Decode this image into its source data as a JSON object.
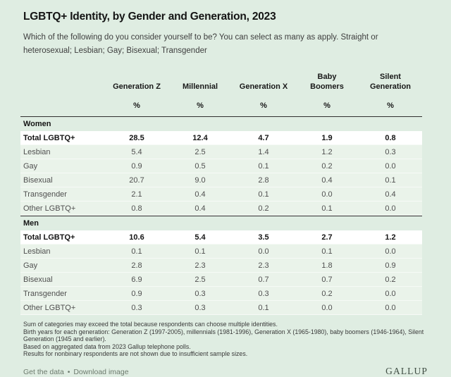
{
  "header": {
    "title": "LGBTQ+ Identity, by Gender and Generation, 2023",
    "question": "Which of the following do you consider yourself to be? You can select as many as apply. Straight or heterosexual; Lesbian; Gay; Bisexual; Transgender"
  },
  "table": {
    "column_headers": [
      "Generation Z",
      "Millennial",
      "Generation X",
      "Baby Boomers",
      "Silent Generation"
    ],
    "unit": "%",
    "sections": [
      {
        "label": "Women",
        "rows": [
          {
            "label": "Total LGBTQ+",
            "emphasis": true,
            "values": [
              "28.5",
              "12.4",
              "4.7",
              "1.9",
              "0.8"
            ]
          },
          {
            "label": "Lesbian",
            "values": [
              "5.4",
              "2.5",
              "1.4",
              "1.2",
              "0.3"
            ]
          },
          {
            "label": "Gay",
            "values": [
              "0.9",
              "0.5",
              "0.1",
              "0.2",
              "0.0"
            ]
          },
          {
            "label": "Bisexual",
            "values": [
              "20.7",
              "9.0",
              "2.8",
              "0.4",
              "0.1"
            ]
          },
          {
            "label": "Transgender",
            "values": [
              "2.1",
              "0.4",
              "0.1",
              "0.0",
              "0.4"
            ]
          },
          {
            "label": "Other LGBTQ+",
            "values": [
              "0.8",
              "0.4",
              "0.2",
              "0.1",
              "0.0"
            ]
          }
        ]
      },
      {
        "label": "Men",
        "rows": [
          {
            "label": "Total LGBTQ+",
            "emphasis": true,
            "values": [
              "10.6",
              "5.4",
              "3.5",
              "2.7",
              "1.2"
            ]
          },
          {
            "label": "Lesbian",
            "values": [
              "0.1",
              "0.1",
              "0.0",
              "0.1",
              "0.0"
            ]
          },
          {
            "label": "Gay",
            "values": [
              "2.8",
              "2.3",
              "2.3",
              "1.8",
              "0.9"
            ]
          },
          {
            "label": "Bisexual",
            "values": [
              "6.9",
              "2.5",
              "0.7",
              "0.7",
              "0.2"
            ]
          },
          {
            "label": "Transgender",
            "values": [
              "0.9",
              "0.3",
              "0.3",
              "0.2",
              "0.0"
            ]
          },
          {
            "label": "Other LGBTQ+",
            "values": [
              "0.3",
              "0.3",
              "0.1",
              "0.0",
              "0.0"
            ]
          }
        ]
      }
    ]
  },
  "footnotes": [
    "Sum of categories may exceed the total because respondents can choose multiple identities.",
    "Birth years for each generation: Generation Z (1997-2005), millennials (1981-1996), Generation X (1965-1980), baby boomers (1946-1964), Silent Generation (1945 and earlier).",
    "Based on aggregated data from 2023 Gallup telephone polls.",
    "Results for nonbinary respondents are not shown due to insufficient sample sizes."
  ],
  "footer": {
    "get_data_label": "Get the data",
    "separator": "•",
    "download_label": "Download image",
    "logo": "GALLUP"
  },
  "colors": {
    "background": "#dfede2",
    "data_row": "#eaf3ea",
    "total_row": "#ffffff",
    "section_border": "#2f2f2f",
    "heading_text": "#141414",
    "body_text": "#4f4f4f",
    "footer_link": "#6d7b6e",
    "logo_text": "#414f45"
  },
  "chart_data": {
    "type": "table",
    "title": "LGBTQ+ Identity, by Gender and Generation, 2023",
    "subtitle": "Which of the following do you consider yourself to be? You can select as many as apply. Straight or heterosexual; Lesbian; Gay; Bisexual; Transgender",
    "unit": "%",
    "categories": [
      "Generation Z",
      "Millennial",
      "Generation X",
      "Baby Boomers",
      "Silent Generation"
    ],
    "groups": [
      {
        "name": "Women",
        "series": [
          {
            "name": "Total LGBTQ+",
            "values": [
              28.5,
              12.4,
              4.7,
              1.9,
              0.8
            ]
          },
          {
            "name": "Lesbian",
            "values": [
              5.4,
              2.5,
              1.4,
              1.2,
              0.3
            ]
          },
          {
            "name": "Gay",
            "values": [
              0.9,
              0.5,
              0.1,
              0.2,
              0.0
            ]
          },
          {
            "name": "Bisexual",
            "values": [
              20.7,
              9.0,
              2.8,
              0.4,
              0.1
            ]
          },
          {
            "name": "Transgender",
            "values": [
              2.1,
              0.4,
              0.1,
              0.0,
              0.4
            ]
          },
          {
            "name": "Other LGBTQ+",
            "values": [
              0.8,
              0.4,
              0.2,
              0.1,
              0.0
            ]
          }
        ]
      },
      {
        "name": "Men",
        "series": [
          {
            "name": "Total LGBTQ+",
            "values": [
              10.6,
              5.4,
              3.5,
              2.7,
              1.2
            ]
          },
          {
            "name": "Lesbian",
            "values": [
              0.1,
              0.1,
              0.0,
              0.1,
              0.0
            ]
          },
          {
            "name": "Gay",
            "values": [
              2.8,
              2.3,
              2.3,
              1.8,
              0.9
            ]
          },
          {
            "name": "Bisexual",
            "values": [
              6.9,
              2.5,
              0.7,
              0.7,
              0.2
            ]
          },
          {
            "name": "Transgender",
            "values": [
              0.9,
              0.3,
              0.3,
              0.2,
              0.0
            ]
          },
          {
            "name": "Other LGBTQ+",
            "values": [
              0.3,
              0.3,
              0.1,
              0.0,
              0.0
            ]
          }
        ]
      }
    ]
  }
}
